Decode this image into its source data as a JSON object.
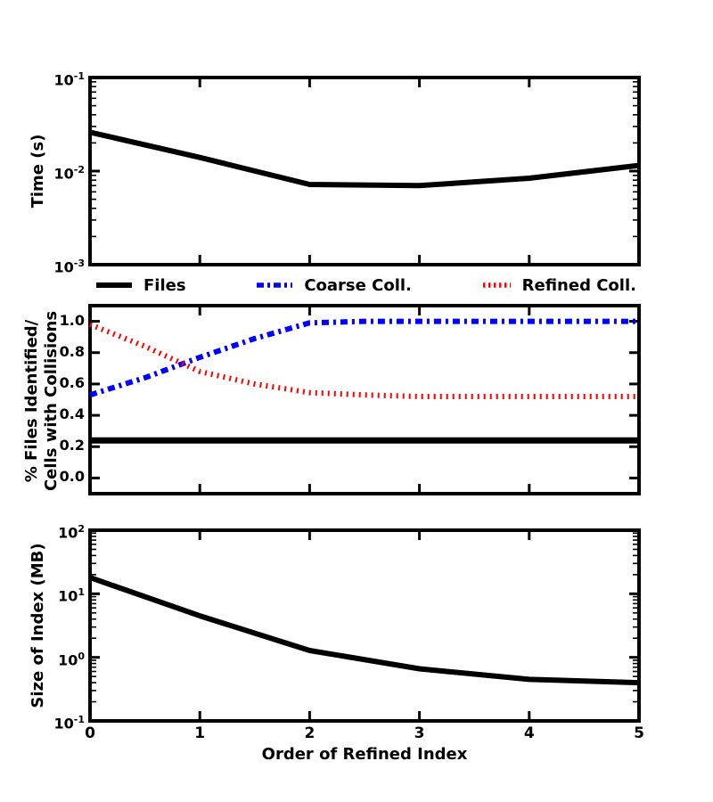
{
  "figure": {
    "background": "#ffffff",
    "axis_color": "#000000",
    "xlabel": "Order of Refined Index",
    "xtick_labels": [
      "0",
      "1",
      "2",
      "3",
      "4",
      "5"
    ],
    "ylabels": {
      "time": "Time (s)",
      "percent_line1": "% Files Identified/",
      "percent_line2": "Cells with Collisions",
      "size": "Size of Index (MB)"
    },
    "legend": [
      {
        "label": "Files",
        "color": "#000000",
        "dash": "solid"
      },
      {
        "label": "Coarse Coll.",
        "color": "#0000ff",
        "dash": "dashdot"
      },
      {
        "label": "Refined Coll.",
        "color": "#ff0000",
        "dash": "dotted"
      }
    ]
  },
  "chart_data": [
    {
      "id": "time",
      "type": "line",
      "title": "",
      "xlabel": "",
      "ylabel": "Time (s)",
      "yscale": "log",
      "xlim": [
        0,
        5
      ],
      "ylim": [
        0.001,
        0.1
      ],
      "xticks": [
        0,
        1,
        2,
        3,
        4,
        5
      ],
      "yticks": [
        {
          "value": 0.1,
          "label": "10^-1"
        },
        {
          "value": 0.01,
          "label": "10^-2"
        },
        {
          "value": 0.001,
          "label": "10^-3"
        }
      ],
      "series": [
        {
          "name": "Time",
          "color": "#000000",
          "style": "solid",
          "width": 6,
          "x": [
            0,
            1,
            2,
            3,
            4,
            5
          ],
          "values": [
            0.026,
            0.014,
            0.0072,
            0.007,
            0.0084,
            0.0115
          ]
        }
      ]
    },
    {
      "id": "percent",
      "type": "line",
      "title": "",
      "xlabel": "",
      "ylabel": "% Files Identified/ Cells with Collisions",
      "yscale": "linear",
      "xlim": [
        0,
        5
      ],
      "ylim": [
        -0.1,
        1.1
      ],
      "xticks": [
        0,
        1,
        2,
        3,
        4,
        5
      ],
      "yticks": [
        {
          "value": 1.0,
          "label": "1.0"
        },
        {
          "value": 0.8,
          "label": "0.8"
        },
        {
          "value": 0.6,
          "label": "0.6"
        },
        {
          "value": 0.4,
          "label": "0.4"
        },
        {
          "value": 0.2,
          "label": "0.2"
        },
        {
          "value": 0.0,
          "label": "0.0"
        }
      ],
      "series": [
        {
          "name": "Files",
          "color": "#000000",
          "style": "solid",
          "width": 7,
          "x": [
            0,
            5
          ],
          "values": [
            0.24,
            0.24
          ]
        },
        {
          "name": "Coarse Coll.",
          "color": "#0000ff",
          "style": "dashdot",
          "width": 6,
          "x": [
            0,
            0.5,
            1,
            1.5,
            2,
            2.5,
            3,
            3.5,
            4,
            4.5,
            5
          ],
          "values": [
            0.53,
            0.64,
            0.77,
            0.89,
            0.99,
            1.0,
            1.0,
            1.0,
            1.0,
            1.0,
            1.0
          ]
        },
        {
          "name": "Refined Coll.",
          "color": "#ff0000",
          "style": "dotted",
          "width": 6,
          "x": [
            0,
            0.5,
            1,
            1.5,
            2,
            2.5,
            3,
            3.5,
            4,
            4.5,
            5
          ],
          "values": [
            0.98,
            0.84,
            0.68,
            0.6,
            0.545,
            0.53,
            0.52,
            0.52,
            0.52,
            0.52,
            0.52
          ]
        }
      ]
    },
    {
      "id": "size",
      "type": "line",
      "title": "",
      "xlabel": "Order of Refined Index",
      "ylabel": "Size of Index (MB)",
      "yscale": "log",
      "xlim": [
        0,
        5
      ],
      "ylim": [
        0.1,
        100
      ],
      "xticks": [
        0,
        1,
        2,
        3,
        4,
        5
      ],
      "yticks": [
        {
          "value": 100,
          "label": "10^2"
        },
        {
          "value": 10,
          "label": "10^1"
        },
        {
          "value": 1,
          "label": "10^0"
        },
        {
          "value": 0.1,
          "label": "10^-1"
        }
      ],
      "series": [
        {
          "name": "Size of Index",
          "color": "#000000",
          "style": "solid",
          "width": 6,
          "x": [
            0,
            1,
            2,
            3,
            4,
            5
          ],
          "values": [
            18,
            4.5,
            1.28,
            0.66,
            0.45,
            0.4
          ]
        }
      ]
    }
  ]
}
